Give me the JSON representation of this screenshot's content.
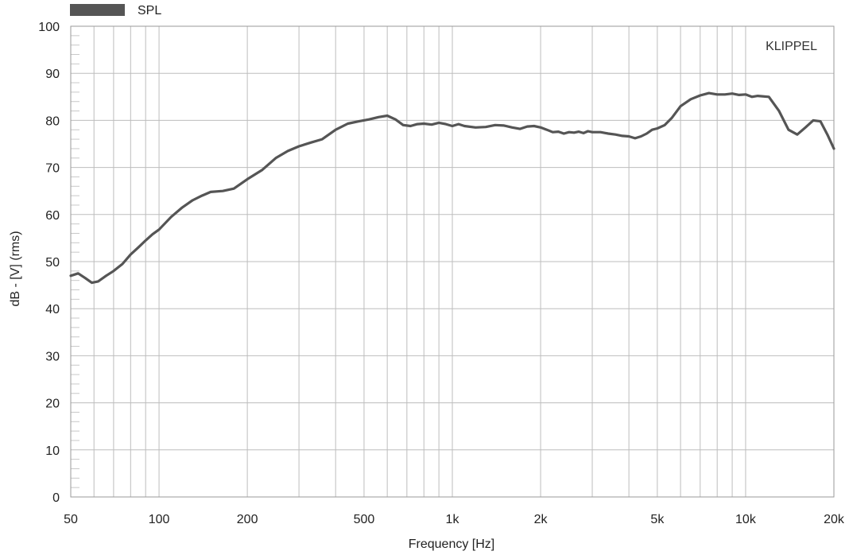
{
  "chart_data": {
    "type": "line",
    "x_scale": "log",
    "xlim": [
      50,
      20000
    ],
    "ylim": [
      0,
      100
    ],
    "xlabel": "Frequency [Hz]",
    "ylabel": "dB - [V]  (rms)",
    "watermark": "KLIPPEL",
    "legend_position": "top-left",
    "grid": true,
    "x_ticks": [
      {
        "value": 50,
        "label": "50"
      },
      {
        "value": 100,
        "label": "100"
      },
      {
        "value": 200,
        "label": "200"
      },
      {
        "value": 500,
        "label": "500"
      },
      {
        "value": 1000,
        "label": "1k"
      },
      {
        "value": 2000,
        "label": "2k"
      },
      {
        "value": 5000,
        "label": "5k"
      },
      {
        "value": 10000,
        "label": "10k"
      },
      {
        "value": 20000,
        "label": "20k"
      }
    ],
    "y_ticks": [
      0,
      10,
      20,
      30,
      40,
      50,
      60,
      70,
      80,
      90,
      100
    ],
    "series": [
      {
        "name": "SPL",
        "color": "#555555",
        "x": [
          50,
          53,
          56,
          59,
          62,
          66,
          70,
          75,
          80,
          85,
          90,
          95,
          100,
          110,
          120,
          130,
          140,
          150,
          165,
          180,
          200,
          225,
          250,
          275,
          300,
          330,
          360,
          400,
          440,
          480,
          520,
          560,
          600,
          640,
          680,
          720,
          760,
          800,
          850,
          900,
          950,
          1000,
          1050,
          1100,
          1200,
          1300,
          1400,
          1500,
          1600,
          1700,
          1800,
          1900,
          2000,
          2100,
          2200,
          2300,
          2400,
          2500,
          2600,
          2700,
          2800,
          2900,
          3000,
          3200,
          3400,
          3600,
          3800,
          4000,
          4200,
          4400,
          4600,
          4800,
          5000,
          5300,
          5600,
          6000,
          6500,
          7000,
          7500,
          8000,
          8500,
          9000,
          9500,
          10000,
          10500,
          11000,
          12000,
          13000,
          14000,
          15000,
          16000,
          17000,
          18000,
          19000,
          20000
        ],
        "values": [
          47,
          47.5,
          46.5,
          45.5,
          45.8,
          47,
          48,
          49.5,
          51.5,
          53,
          54.5,
          55.8,
          56.8,
          59.5,
          61.5,
          63,
          64,
          64.8,
          65,
          65.5,
          67.5,
          69.5,
          72,
          73.5,
          74.5,
          75.3,
          76,
          78,
          79.3,
          79.8,
          80.2,
          80.7,
          81,
          80.2,
          79,
          78.8,
          79.2,
          79.3,
          79.1,
          79.5,
          79.2,
          78.8,
          79.2,
          78.8,
          78.5,
          78.6,
          79,
          78.9,
          78.5,
          78.2,
          78.7,
          78.8,
          78.5,
          78,
          77.5,
          77.6,
          77.2,
          77.5,
          77.4,
          77.6,
          77.3,
          77.7,
          77.5,
          77.5,
          77.2,
          77,
          76.7,
          76.6,
          76.2,
          76.6,
          77.2,
          78,
          78.3,
          79,
          80.5,
          83,
          84.5,
          85.3,
          85.8,
          85.5,
          85.5,
          85.7,
          85.4,
          85.5,
          85,
          85.2,
          85,
          82,
          78,
          77,
          78.5,
          80,
          79.8,
          77,
          74
        ]
      }
    ]
  }
}
